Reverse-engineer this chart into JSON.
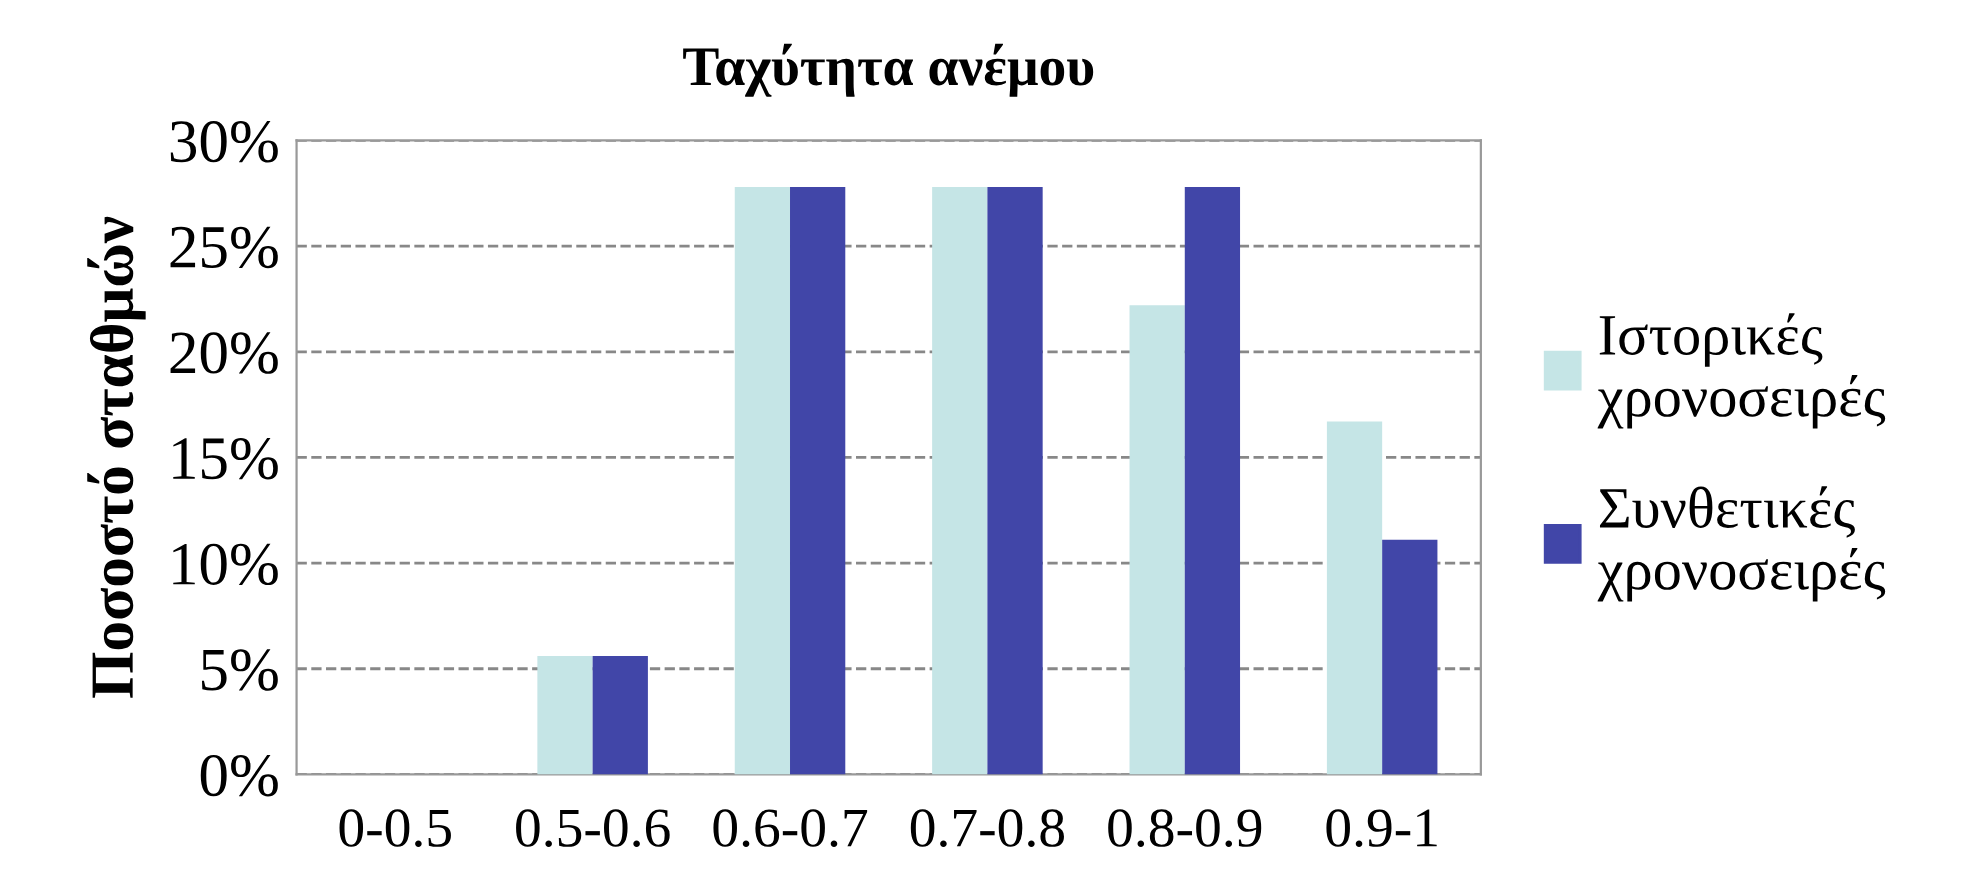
{
  "chart_data": {
    "type": "bar",
    "title": "Ταχύτητα ανέμου",
    "ylabel": "Ποσοστό σταθμών",
    "categories": [
      "0-0.5",
      "0.5-0.6",
      "0.6-0.7",
      "0.7-0.8",
      "0.8-0.9",
      "0.9-1"
    ],
    "series": [
      {
        "name": "Ιστορικές χρονοσειρές",
        "color": "#c5e5e6",
        "values": [
          0,
          5.6,
          27.8,
          27.8,
          22.2,
          16.7
        ]
      },
      {
        "name": "Συνθετικές χρονοσειρές",
        "color": "#4146a8",
        "values": [
          0,
          5.6,
          27.8,
          27.8,
          27.8,
          11.1
        ]
      }
    ],
    "ylim": [
      0,
      30
    ],
    "yticks": [
      {
        "value": 0,
        "label": "0%"
      },
      {
        "value": 5,
        "label": "5%"
      },
      {
        "value": 10,
        "label": "10%"
      },
      {
        "value": 15,
        "label": "15%"
      },
      {
        "value": 20,
        "label": "20%"
      },
      {
        "value": 25,
        "label": "25%"
      },
      {
        "value": 30,
        "label": "30%"
      }
    ],
    "grid": "y",
    "legend": "right"
  }
}
